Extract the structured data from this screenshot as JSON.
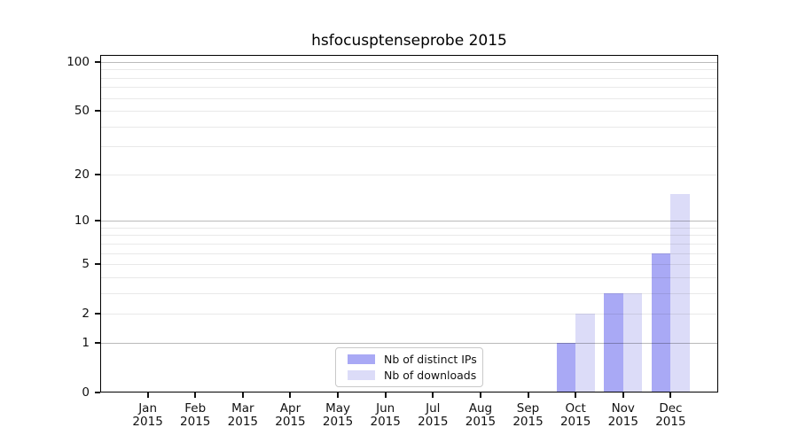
{
  "title": "hsfocusptenseprobe 2015",
  "colors": {
    "axis": "#000000",
    "minor_grid": "#e8e8e8",
    "major_grid": "#b8b8b8",
    "background": "#ffffff"
  },
  "chart_data": {
    "type": "bar",
    "title": "hsfocusptenseprobe 2015",
    "scale": "log1p",
    "grid": true,
    "legend_position": "bottom-center-inside",
    "x_categories": [
      {
        "month": "Jan",
        "year": "2015"
      },
      {
        "month": "Feb",
        "year": "2015"
      },
      {
        "month": "Mar",
        "year": "2015"
      },
      {
        "month": "Apr",
        "year": "2015"
      },
      {
        "month": "May",
        "year": "2015"
      },
      {
        "month": "Jun",
        "year": "2015"
      },
      {
        "month": "Jul",
        "year": "2015"
      },
      {
        "month": "Aug",
        "year": "2015"
      },
      {
        "month": "Sep",
        "year": "2015"
      },
      {
        "month": "Oct",
        "year": "2015"
      },
      {
        "month": "Nov",
        "year": "2015"
      },
      {
        "month": "Dec",
        "year": "2015"
      }
    ],
    "series": [
      {
        "name": "Nb of distinct IPs",
        "color": "#a9a9f5",
        "values": [
          0,
          0,
          0,
          0,
          0,
          0,
          0,
          0,
          0,
          1,
          3,
          6
        ]
      },
      {
        "name": "Nb of downloads",
        "color": "#dcdcf8",
        "values": [
          0,
          0,
          0,
          0,
          0,
          0,
          0,
          0,
          0,
          2,
          3,
          15
        ]
      }
    ],
    "y_axis": {
      "tick_labels": [
        0,
        1,
        2,
        5,
        10,
        20,
        50,
        100
      ],
      "minor_gridlines": [
        2,
        3,
        4,
        5,
        6,
        7,
        8,
        9,
        20,
        30,
        40,
        50,
        60,
        70,
        80,
        90
      ],
      "major_gridlines": [
        1,
        10,
        100
      ],
      "min": 0,
      "max": 100
    }
  }
}
